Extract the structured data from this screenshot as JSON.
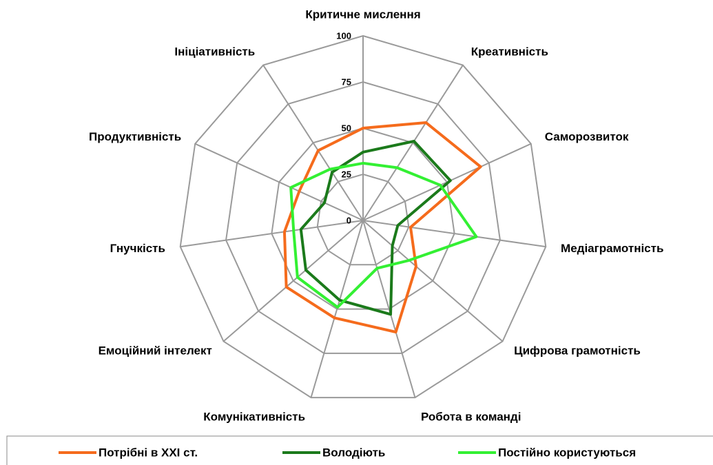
{
  "chart_data": {
    "type": "radar",
    "categories": [
      "Критичне мислення",
      "Креативність",
      "Саморозвиток",
      "Медіаграмотність",
      "Цифрова грамотність",
      "Робота в команді",
      "Комунікативність",
      "Емоційний інтелект",
      "Гнучкість",
      "Продуктивність",
      "Ініціативність"
    ],
    "series": [
      {
        "name": "Потрібні в XXI ст.",
        "color": "#f56b1c",
        "values": [
          50,
          63,
          70,
          26,
          38,
          63,
          55,
          55,
          43,
          38,
          45
        ]
      },
      {
        "name": "Володіють",
        "color": "#1b7a1b",
        "values": [
          37,
          51,
          52,
          19,
          21,
          53,
          45,
          41,
          34,
          23,
          31
        ]
      },
      {
        "name": "Постійно користуються",
        "color": "#33f033",
        "values": [
          31,
          34,
          46,
          62,
          33,
          27,
          49,
          47,
          38,
          43,
          33
        ]
      }
    ],
    "ylim": [
      0,
      100
    ],
    "yticks": [
      0,
      25,
      50,
      75,
      100
    ],
    "grid": true,
    "legend": "bottom"
  }
}
